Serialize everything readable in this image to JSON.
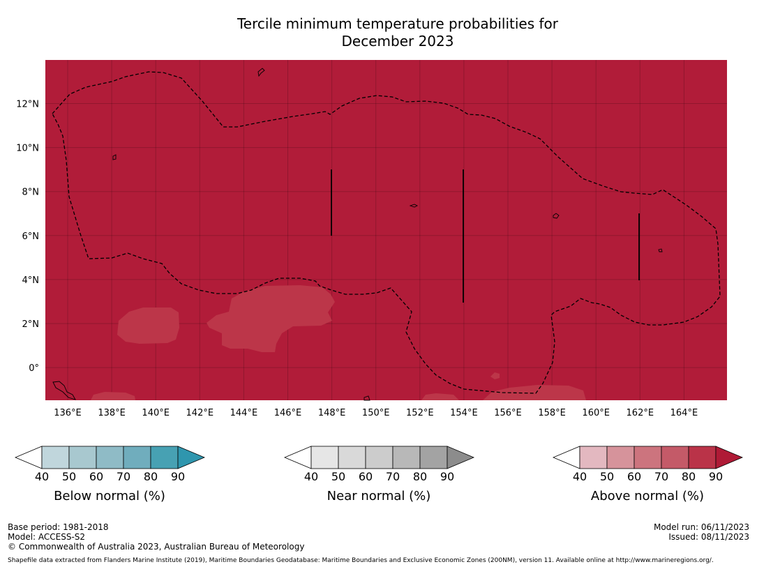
{
  "title": {
    "line1": "Tercile minimum temperature probabilities for",
    "line2": "December 2023"
  },
  "colors": {
    "map_fill": "#b11c39",
    "warm_patch": "#bc3649",
    "boundary": "#000000"
  },
  "axes": {
    "lon_ticks": [
      "136°E",
      "138°E",
      "140°E",
      "142°E",
      "144°E",
      "146°E",
      "148°E",
      "150°E",
      "152°E",
      "154°E",
      "156°E",
      "158°E",
      "160°E",
      "162°E",
      "164°E"
    ],
    "lat_ticks": [
      "12°N",
      "10°N",
      "8°N",
      "6°N",
      "4°N",
      "2°N",
      "0°"
    ]
  },
  "colorbars": [
    {
      "name": "below",
      "label": "Below normal (%)",
      "ticks": [
        "40",
        "50",
        "60",
        "70",
        "80",
        "90"
      ],
      "colors": [
        "#c0d6dc",
        "#a8c8cf",
        "#8fbbc6",
        "#70adbd",
        "#47a1b3",
        "#2f96ae"
      ]
    },
    {
      "name": "near",
      "label": "Near normal (%)",
      "ticks": [
        "40",
        "50",
        "60",
        "70",
        "80",
        "90"
      ],
      "colors": [
        "#e6e6e6",
        "#d9d9d9",
        "#cccccc",
        "#b8b8b8",
        "#a3a3a3",
        "#8c8c8c"
      ]
    },
    {
      "name": "above",
      "label": "Above normal (%)",
      "ticks": [
        "40",
        "50",
        "60",
        "70",
        "80",
        "90"
      ],
      "colors": [
        "#e3b8c0",
        "#d6939b",
        "#cc747e",
        "#c45a68",
        "#ba3348",
        "#af1a36"
      ]
    }
  ],
  "footer": {
    "base_period": "Base period: 1981-2018",
    "model": "Model: ACCESS-S2",
    "copyright": "© Commonwealth of Australia 2023, Australian Bureau of Meteorology",
    "model_run": "Model run: 06/11/2023",
    "issued": "Issued: 08/11/2023",
    "shapefile": "Shapefile data extracted from Flanders Marine Institute (2019), Maritime Boundaries Geodatabase: Maritime Boundaries and Exclusive Economic Zones (200NM), version 11. Available online at http://www.marineregions.org/."
  }
}
